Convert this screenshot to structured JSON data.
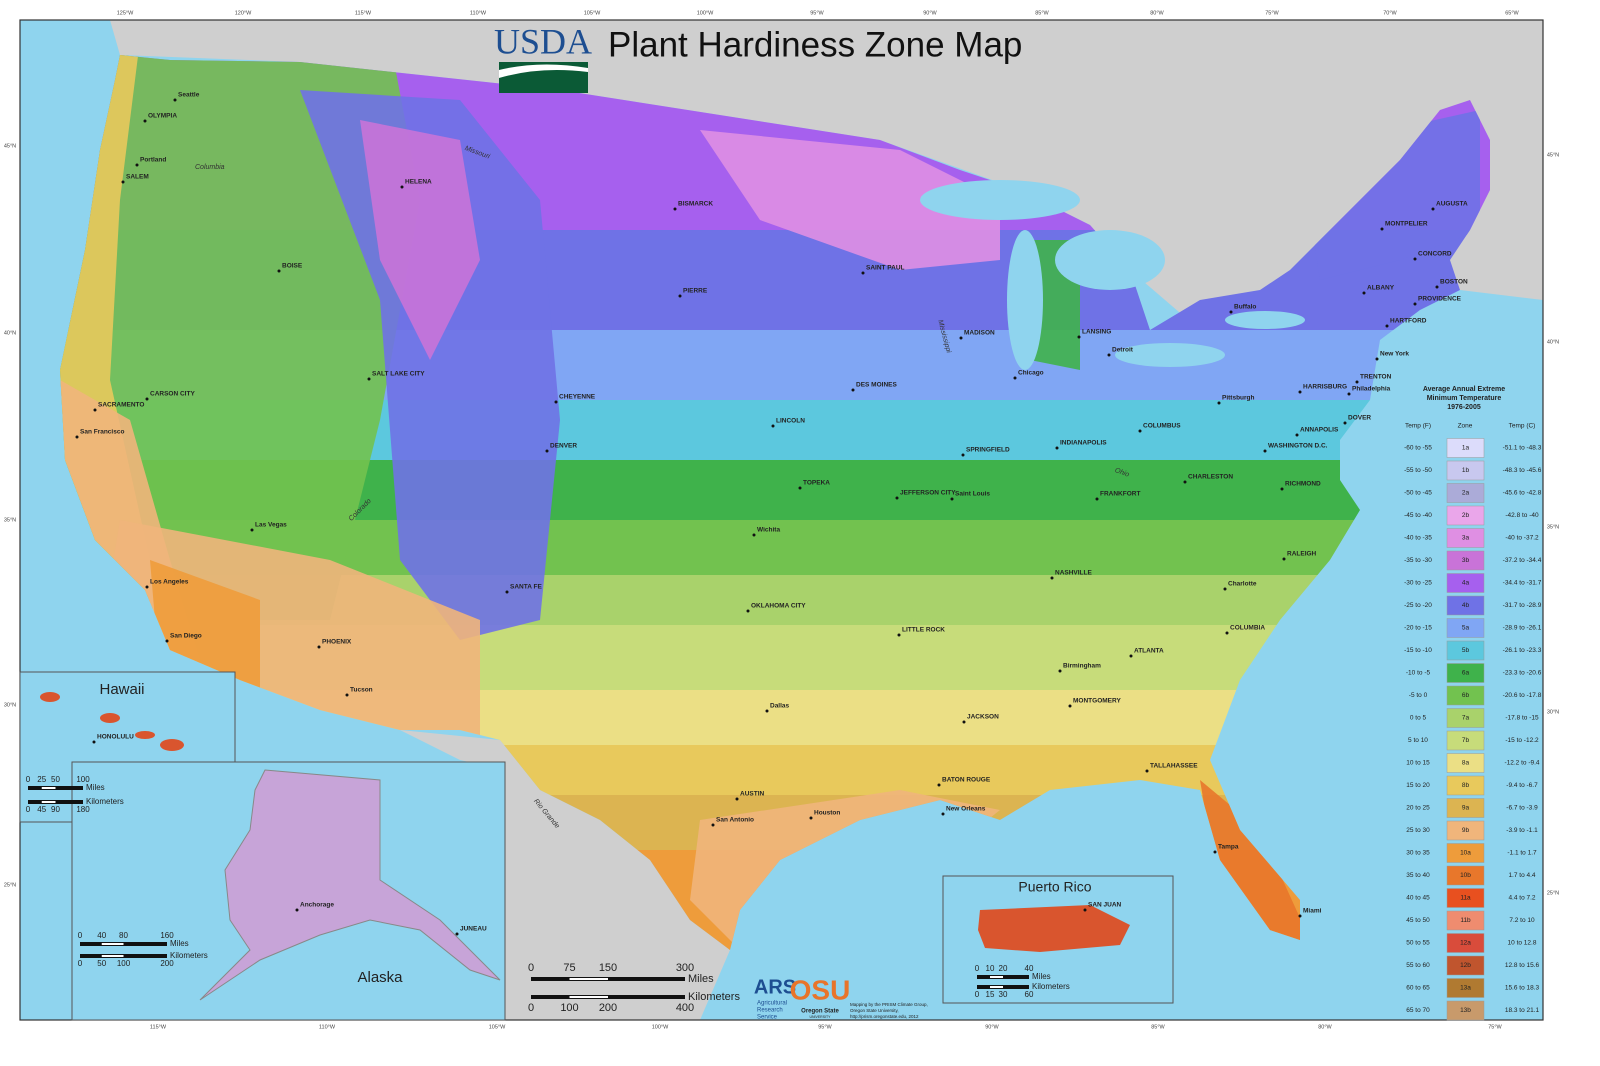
{
  "header": {
    "logo": "USDA",
    "title": "Plant Hardiness Zone Map"
  },
  "legend": {
    "title": [
      "Average Annual Extreme",
      "Minimum Temperature",
      "1976-2005"
    ],
    "columns": [
      "Temp (F)",
      "Zone",
      "Temp (C)"
    ],
    "rows": [
      {
        "temp_f": "-60 to -55",
        "zone": "1a",
        "temp_c": "-51.1 to -48.3",
        "color": "#dcdcfb"
      },
      {
        "temp_f": "-55 to -50",
        "zone": "1b",
        "temp_c": "-48.3 to -45.6",
        "color": "#c8c8ef"
      },
      {
        "temp_f": "-50 to -45",
        "zone": "2a",
        "temp_c": "-45.6 to -42.8",
        "color": "#ababd8"
      },
      {
        "temp_f": "-45 to -40",
        "zone": "2b",
        "temp_c": "-42.8 to -40",
        "color": "#eaa6ea"
      },
      {
        "temp_f": "-40 to -35",
        "zone": "3a",
        "temp_c": "-40 to -37.2",
        "color": "#df8fe3"
      },
      {
        "temp_f": "-35 to -30",
        "zone": "3b",
        "temp_c": "-37.2 to -34.4",
        "color": "#c973d8"
      },
      {
        "temp_f": "-30 to -25",
        "zone": "4a",
        "temp_c": "-34.4 to -31.7",
        "color": "#a660ee"
      },
      {
        "temp_f": "-25 to -20",
        "zone": "4b",
        "temp_c": "-31.7 to -28.9",
        "color": "#6f72e6"
      },
      {
        "temp_f": "-20 to -15",
        "zone": "5a",
        "temp_c": "-28.9 to -26.1",
        "color": "#80a6f4"
      },
      {
        "temp_f": "-15 to -10",
        "zone": "5b",
        "temp_c": "-26.1 to -23.3",
        "color": "#5cc8de"
      },
      {
        "temp_f": "-10 to -5",
        "zone": "6a",
        "temp_c": "-23.3 to -20.6",
        "color": "#3fb24b"
      },
      {
        "temp_f": "-5 to 0",
        "zone": "6b",
        "temp_c": "-20.6 to -17.8",
        "color": "#72c24f"
      },
      {
        "temp_f": "0 to 5",
        "zone": "7a",
        "temp_c": "-17.8 to -15",
        "color": "#a9d26b"
      },
      {
        "temp_f": "5 to 10",
        "zone": "7b",
        "temp_c": "-15 to -12.2",
        "color": "#c7dc7a"
      },
      {
        "temp_f": "10 to 15",
        "zone": "8a",
        "temp_c": "-12.2 to -9.4",
        "color": "#ebdf85"
      },
      {
        "temp_f": "15 to 20",
        "zone": "8b",
        "temp_c": "-9.4 to -6.7",
        "color": "#e8c95c"
      },
      {
        "temp_f": "20 to 25",
        "zone": "9a",
        "temp_c": "-6.7 to -3.9",
        "color": "#dcb451"
      },
      {
        "temp_f": "25 to 30",
        "zone": "9b",
        "temp_c": "-3.9 to -1.1",
        "color": "#f0b57b"
      },
      {
        "temp_f": "30 to 35",
        "zone": "10a",
        "temp_c": "-1.1 to 1.7",
        "color": "#ee9c3b"
      },
      {
        "temp_f": "35 to 40",
        "zone": "10b",
        "temp_c": "1.7 to 4.4",
        "color": "#e8772b"
      },
      {
        "temp_f": "40 to 45",
        "zone": "11a",
        "temp_c": "4.4 to 7.2",
        "color": "#e8501f"
      },
      {
        "temp_f": "45 to 50",
        "zone": "11b",
        "temp_c": "7.2 to 10",
        "color": "#ef8c6f"
      },
      {
        "temp_f": "50 to 55",
        "zone": "12a",
        "temp_c": "10 to 12.8",
        "color": "#d94c3b"
      },
      {
        "temp_f": "55 to 60",
        "zone": "12b",
        "temp_c": "12.8 to 15.6",
        "color": "#c0552e"
      },
      {
        "temp_f": "60 to 65",
        "zone": "13a",
        "temp_c": "15.6 to 18.3",
        "color": "#b07a31"
      },
      {
        "temp_f": "65 to 70",
        "zone": "13b",
        "temp_c": "18.3 to 21.1",
        "color": "#c89a6b"
      }
    ]
  },
  "graticule": {
    "top": [
      "125°W",
      "120°W",
      "115°W",
      "110°W",
      "105°W",
      "100°W",
      "95°W",
      "90°W",
      "85°W",
      "80°W",
      "75°W",
      "70°W",
      "65°W"
    ],
    "bottom": [
      "115°W",
      "110°W",
      "105°W",
      "100°W",
      "95°W",
      "90°W",
      "85°W",
      "80°W",
      "75°W"
    ],
    "left": [
      "45°N",
      "40°N",
      "35°N",
      "30°N",
      "25°N"
    ],
    "right": [
      "45°N",
      "40°N",
      "35°N",
      "30°N",
      "25°N"
    ]
  },
  "cities": [
    "Seattle",
    "OLYMPIA",
    "Portland",
    "SALEM",
    "HELENA",
    "BISMARCK",
    "BOISE",
    "PIERRE",
    "SAINT PAUL",
    "MADISON",
    "LANSING",
    "AUGUSTA",
    "MONTPELIER",
    "CONCORD",
    "BOSTON",
    "ALBANY",
    "PROVIDENCE",
    "HARTFORD",
    "Buffalo",
    "Detroit",
    "Chicago",
    "New York",
    "TRENTON",
    "HARRISBURG",
    "Philadelphia",
    "Pittsburgh",
    "DOVER",
    "ANNAPOLIS",
    "WASHINGTON D.C.",
    "SACRAMENTO",
    "CARSON CITY",
    "San Francisco",
    "SALT LAKE CITY",
    "CHEYENNE",
    "DENVER",
    "LINCOLN",
    "DES MOINES",
    "SPRINGFIELD",
    "INDIANAPOLIS",
    "COLUMBUS",
    "CHARLESTON",
    "FRANKFORT",
    "RICHMOND",
    "TOPEKA",
    "JEFFERSON CITY",
    "Saint Louis",
    "Las Vegas",
    "Wichita",
    "RALEIGH",
    "NASHVILLE",
    "Los Angeles",
    "SANTA FE",
    "Charlotte",
    "OKLAHOMA CITY",
    "San Diego",
    "PHOENIX",
    "LITTLE ROCK",
    "COLUMBIA",
    "Birmingham",
    "ATLANTA",
    "Tucson",
    "Dallas",
    "MONTGOMERY",
    "JACKSON",
    "TALLAHASSEE",
    "BATON ROUGE",
    "AUSTIN",
    "Houston",
    "New Orleans",
    "San Antonio",
    "Tampa",
    "Miami",
    "HONOLULU",
    "Anchorage",
    "JUNEAU",
    "SAN JUAN"
  ],
  "rivers": [
    "Columbia",
    "Missouri",
    "Mississippi",
    "Ohio",
    "Colorado",
    "Rio Grande"
  ],
  "insets": {
    "hawaii": {
      "title": "Hawaii",
      "scale_miles": [
        "0",
        "25",
        "50",
        "100"
      ],
      "miles": "Miles",
      "scale_km": [
        "0",
        "45",
        "90",
        "180"
      ],
      "kilometers": "Kilometers"
    },
    "alaska": {
      "title": "Alaska",
      "scale_miles": [
        "0",
        "40",
        "80",
        "160"
      ],
      "miles": "Miles",
      "scale_km": [
        "0",
        "50",
        "100",
        "200"
      ],
      "kilometers": "Kilometers"
    },
    "puerto_rico": {
      "title": "Puerto Rico",
      "scale_miles": [
        "0",
        "10",
        "20",
        "40"
      ],
      "miles": "Miles",
      "scale_km": [
        "0",
        "15",
        "30",
        "60"
      ],
      "kilometers": "Kilometers"
    }
  },
  "scale": {
    "miles_ticks": [
      "0",
      "75",
      "150",
      "300"
    ],
    "miles": "Miles",
    "km_ticks": [
      "0",
      "100",
      "200",
      "400"
    ],
    "kilometers": "Kilometers"
  },
  "credits": {
    "ars_logo": "ARS",
    "ars": [
      "Agricultural",
      "Research",
      "Service"
    ],
    "osu_logo": "OSU",
    "osu": [
      "Oregon State",
      "UNIVERSITY"
    ],
    "mapping": [
      "Mapping by the PRISM Climate Group,",
      "Oregon State University,",
      "http://prism.oregonstate.edu, 2012"
    ]
  }
}
